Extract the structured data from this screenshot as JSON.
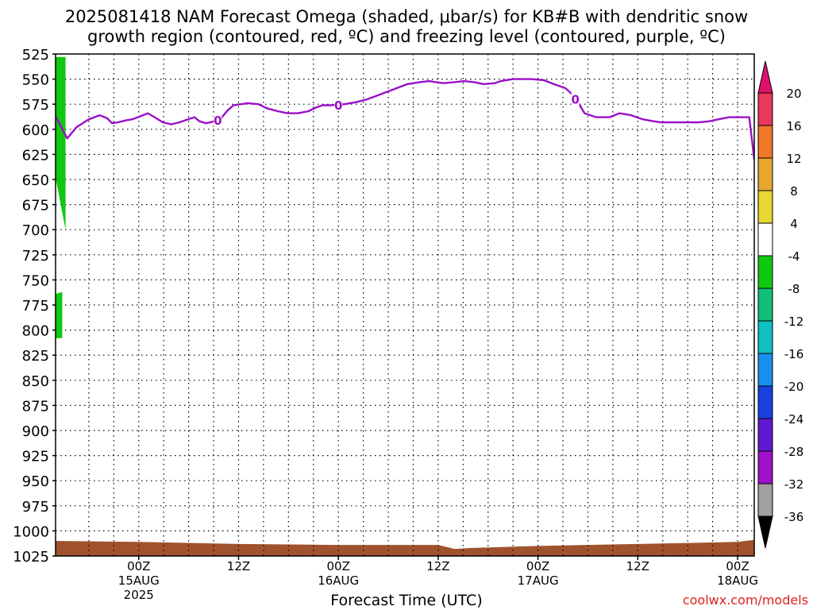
{
  "title": {
    "line1": "2025081418 NAM Forecast Omega (shaded, μbar/s) for KB#B with dendritic snow",
    "line2": "growth region (contoured, red, ºC) and freezing level (contoured, purple, ºC)"
  },
  "credit": "coolwx.com/models",
  "chart_data": {
    "type": "time-height cross-section",
    "xlabel": "Forecast Time (UTC)",
    "x_range_hours": [
      -4,
      80
    ],
    "x_ticks": [
      {
        "hour": 6,
        "label": "00Z",
        "sub": "15AUG",
        "sub2": "2025"
      },
      {
        "hour": 18,
        "label": "12Z"
      },
      {
        "hour": 30,
        "label": "00Z",
        "sub": "16AUG"
      },
      {
        "hour": 42,
        "label": "12Z"
      },
      {
        "hour": 54,
        "label": "00Z",
        "sub": "17AUG"
      },
      {
        "hour": 66,
        "label": "12Z"
      },
      {
        "hour": 78,
        "label": "00Z",
        "sub": "18AUG"
      }
    ],
    "y_range_mb": [
      525,
      1025
    ],
    "y_ticks": [
      525,
      550,
      575,
      600,
      625,
      650,
      675,
      700,
      725,
      750,
      775,
      800,
      825,
      850,
      875,
      900,
      925,
      950,
      975,
      1000,
      1025
    ],
    "colorbar": {
      "labels": [
        "20",
        "16",
        "12",
        "8",
        "4",
        "-4",
        "-8",
        "-12",
        "-16",
        "-20",
        "-24",
        "-28",
        "-32",
        "-36"
      ],
      "colors": [
        "#e8385c",
        "#f07828",
        "#e8a830",
        "#e8d830",
        "#ffffff",
        "#10c810",
        "#10c078",
        "#10c0c0",
        "#1890f0",
        "#1840e0",
        "#6018d0",
        "#a010c8",
        "#a0a0a0"
      ],
      "top_arrow_color": "#e0106c",
      "bottom_arrow_color": "#000000"
    },
    "freezing_level": {
      "name": "0",
      "color": "#9a10c8",
      "label_positions_hours": [
        15.5,
        30,
        58.5
      ],
      "points": [
        [
          -4.0,
          587
        ],
        [
          -2.6,
          609
        ],
        [
          -1.5,
          598
        ],
        [
          0,
          590
        ],
        [
          1.3,
          586
        ],
        [
          2.2,
          589
        ],
        [
          2.8,
          594
        ],
        [
          3.5,
          593
        ],
        [
          4.5,
          591
        ],
        [
          5.2,
          590
        ],
        [
          5.9,
          588
        ],
        [
          6.5,
          586
        ],
        [
          7.1,
          584
        ],
        [
          7.9,
          588
        ],
        [
          8.9,
          593
        ],
        [
          9.9,
          595
        ],
        [
          10.9,
          593
        ],
        [
          11.9,
          590
        ],
        [
          12.7,
          588
        ],
        [
          13.3,
          592
        ],
        [
          14.1,
          594
        ],
        [
          15.1,
          592
        ],
        [
          15.9,
          589
        ],
        [
          16.7,
          581
        ],
        [
          17.4,
          576
        ],
        [
          18.3,
          575
        ],
        [
          19.1,
          574
        ],
        [
          20.4,
          575
        ],
        [
          21.4,
          579
        ],
        [
          22.7,
          582
        ],
        [
          23.9,
          584
        ],
        [
          25.1,
          584
        ],
        [
          26.4,
          582
        ],
        [
          27.4,
          578
        ],
        [
          28.1,
          576
        ],
        [
          29.1,
          576
        ],
        [
          30.7,
          575
        ],
        [
          32.1,
          573
        ],
        [
          33.5,
          570
        ],
        [
          35.1,
          565
        ],
        [
          36.7,
          560
        ],
        [
          38.3,
          555
        ],
        [
          39.8,
          553
        ],
        [
          40.9,
          552
        ],
        [
          41.7,
          553
        ],
        [
          42.7,
          554
        ],
        [
          44.0,
          553
        ],
        [
          45.1,
          552
        ],
        [
          46.3,
          553
        ],
        [
          47.5,
          555
        ],
        [
          48.8,
          554
        ],
        [
          49.5,
          552
        ],
        [
          51.0,
          550
        ],
        [
          52.3,
          550
        ],
        [
          53.2,
          550
        ],
        [
          54.7,
          551
        ],
        [
          55.9,
          555
        ],
        [
          57.3,
          559
        ],
        [
          58.1,
          565
        ],
        [
          58.7,
          572
        ],
        [
          59.1,
          577
        ],
        [
          59.6,
          584
        ],
        [
          61.0,
          588
        ],
        [
          62.6,
          588
        ],
        [
          63.8,
          584
        ],
        [
          65.2,
          586
        ],
        [
          66.6,
          590
        ],
        [
          67.9,
          592
        ],
        [
          68.8,
          593
        ],
        [
          70.2,
          593
        ],
        [
          71.6,
          593
        ],
        [
          73.3,
          593
        ],
        [
          74.6,
          592
        ],
        [
          75.7,
          590
        ],
        [
          77.0,
          588
        ],
        [
          78.2,
          588
        ],
        [
          79.4,
          588
        ],
        [
          80.0,
          630
        ]
      ]
    },
    "omega_shading": [
      {
        "value_range": "-8 to -4",
        "color": "#10c810",
        "hours": [
          -4.0,
          -2.8
        ],
        "top_mb": [
          528,
          528
        ],
        "bottom_mb": [
          648,
          700
        ]
      },
      {
        "value_range": "-8 to -4",
        "color": "#10c810",
        "hours": [
          -4.0,
          -3.2
        ],
        "top_mb": [
          764,
          762
        ],
        "bottom_mb": [
          808,
          808
        ]
      }
    ],
    "terrain": {
      "color": "#a0522d",
      "top_mb_at_hours": [
        [
          -4,
          1010
        ],
        [
          6,
          1011
        ],
        [
          18,
          1013
        ],
        [
          30,
          1014
        ],
        [
          42,
          1014
        ],
        [
          44,
          1018
        ],
        [
          46,
          1017
        ],
        [
          54,
          1015
        ],
        [
          66,
          1013
        ],
        [
          78,
          1011
        ],
        [
          80,
          1009
        ]
      ]
    }
  }
}
